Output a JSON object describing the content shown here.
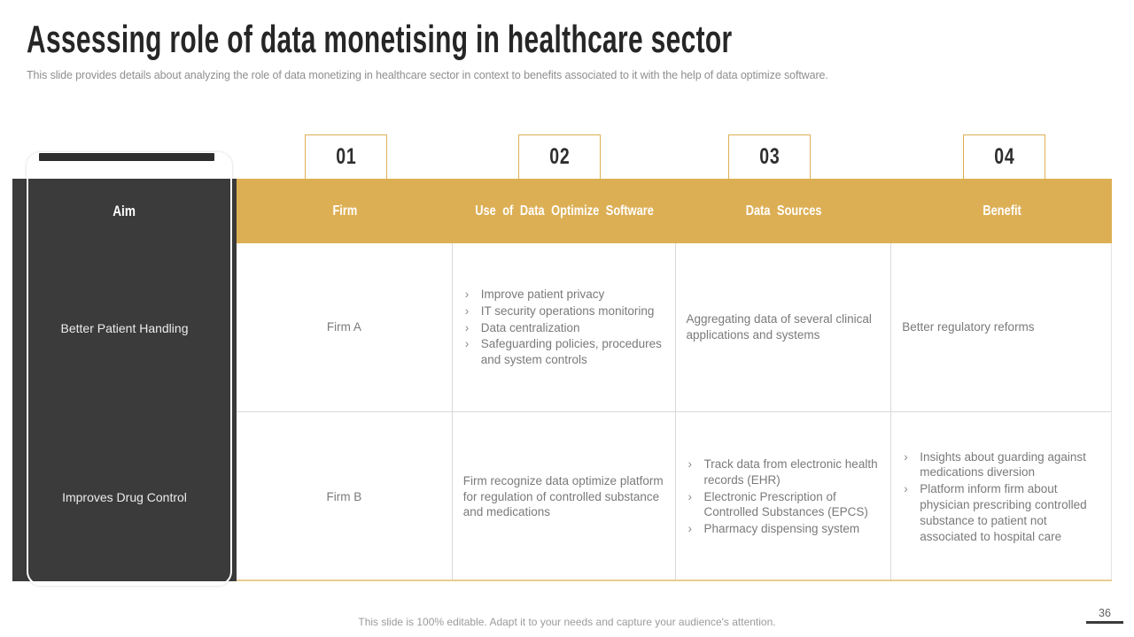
{
  "slide": {
    "title": "Assessing role of data monetising in healthcare sector",
    "subtitle": "This slide provides details about analyzing the role of data monetizing in healthcare sector in context to benefits associated to it with the help of data optimize software.",
    "footer": "This slide is 100% editable. Adapt it to your needs and capture your audience's attention.",
    "page_number": "36"
  },
  "badges": [
    "01",
    "02",
    "03",
    "04"
  ],
  "table": {
    "aim_header": "Aim",
    "columns": [
      "Firm",
      "Use of Data Optimize Software",
      "Data Sources",
      "Benefit"
    ],
    "rows": [
      {
        "aim": "Better Patient Handling",
        "firm": "Firm A",
        "use_bullets": [
          "Improve patient privacy",
          "IT security operations monitoring",
          "Data centralization",
          "Safeguarding policies, procedures and system controls"
        ],
        "sources_text": "Aggregating data of several clinical applications and systems",
        "benefit_text": "Better regulatory reforms"
      },
      {
        "aim": "Improves Drug Control",
        "firm": "Firm B",
        "use_text": "Firm recognize data optimize platform for regulation of controlled substance and medications",
        "sources_bullets": [
          "Track data from electronic health records (EHR)",
          "Electronic Prescription of Controlled Substances (EPCS)",
          "Pharmacy dispensing system"
        ],
        "benefit_bullets": [
          "Insights about guarding against medications diversion",
          "Platform inform firm about physician prescribing controlled substance to patient not associated to hospital care"
        ]
      }
    ]
  },
  "icons": {
    "bullet": "›"
  },
  "colors": {
    "gold": "#DDAF55",
    "dark_panel": "#3B3B3B",
    "body_text": "#7a7a7a",
    "title_text": "#262626"
  }
}
